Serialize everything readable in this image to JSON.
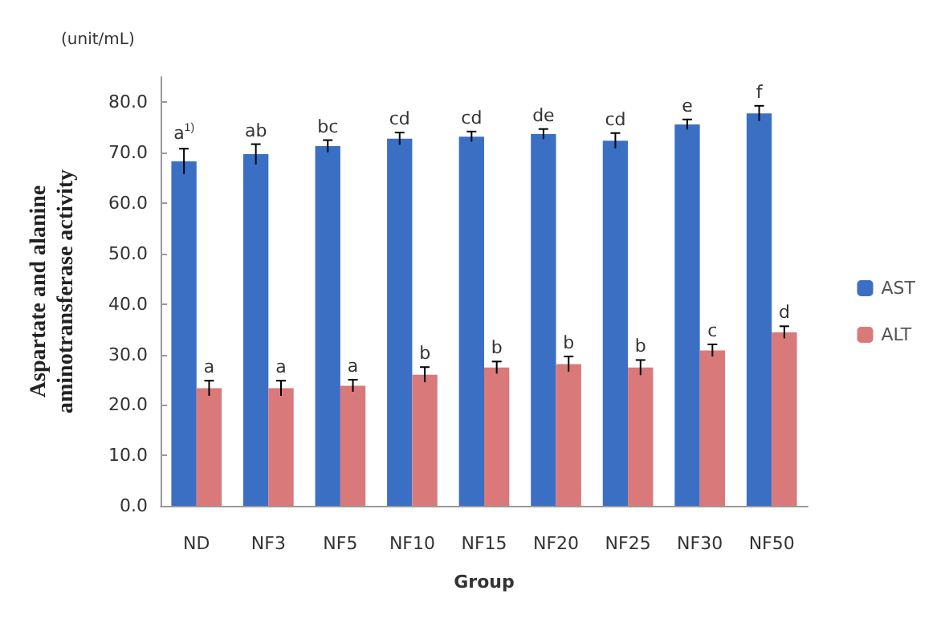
{
  "chart_data": {
    "type": "bar",
    "xlabel": "Group",
    "ylabel": "Aspartate and alanine\naminotransferase activity",
    "annotations": [
      "(unit/mL)",
      {
        "text": "a$^{1)}$",
        "x": "ND",
        "y": 70.8
      },
      {
        "text": "ab",
        "x": "NF3",
        "y": 71.7
      },
      {
        "text": "bc",
        "x": "NF5",
        "y": 72.5
      },
      {
        "text": "cd",
        "x": "NF10",
        "y": 74.0
      },
      {
        "text": "cd",
        "x": "NF15",
        "y": 74.2
      },
      {
        "text": "de",
        "x": "NF20",
        "y": 74.7
      },
      {
        "text": "cd",
        "x": "NF25",
        "y": 73.9
      },
      {
        "text": "e",
        "x": "NF30",
        "y": 76.6
      },
      {
        "text": "f",
        "x": "NF50",
        "y": 79.3
      },
      {
        "text": "a",
        "x": "ND",
        "y": 24.8
      },
      {
        "text": "a",
        "x": "NF3",
        "y": 24.8
      },
      {
        "text": "a",
        "x": "NF5",
        "y": 25.0
      },
      {
        "text": "b",
        "x": "NF10",
        "y": 27.5
      },
      {
        "text": "b",
        "x": "NF15",
        "y": 28.6
      },
      {
        "text": "b",
        "x": "NF20",
        "y": 29.6
      },
      {
        "text": "b",
        "x": "NF25",
        "y": 28.9
      },
      {
        "text": "c",
        "x": "NF30",
        "y": 32.0
      },
      {
        "text": "d",
        "x": "NF50",
        "y": 35.6
      }
    ],
    "categories": [
      "ND",
      "NF3",
      "NF5",
      "NF10",
      "NF15",
      "NF20",
      "NF25",
      "NF30",
      "NF50"
    ],
    "series": [
      {
        "name": "AST",
        "color": "#3a6fc4",
        "values": [
          68.3,
          69.7,
          71.3,
          72.8,
          73.2,
          73.7,
          72.4,
          75.6,
          77.8
        ],
        "errors": [
          2.5,
          2,
          1.2,
          1.2,
          1,
          1,
          1.5,
          1,
          1.5
        ]
      },
      {
        "name": "ALT",
        "color": "#d9797a",
        "values": [
          23.3,
          23.3,
          23.8,
          26.0,
          27.4,
          28.1,
          27.4,
          30.8,
          34.4
        ],
        "errors": [
          1.5,
          1.5,
          1.2,
          1.5,
          1.2,
          1.5,
          1.5,
          1.2,
          1.2
        ]
      }
    ],
    "ylim": [
      0,
      85
    ],
    "yticks": [
      {
        "value": 0,
        "label": "0.0"
      },
      {
        "value": 10,
        "label": "10.0"
      },
      {
        "value": 20,
        "label": "20.0"
      },
      {
        "value": 30,
        "label": "30.0"
      },
      {
        "value": 40,
        "label": "40.0"
      },
      {
        "value": 50,
        "label": "50.0"
      },
      {
        "value": 60,
        "label": "60.0"
      },
      {
        "value": 70,
        "label": "70.0"
      },
      {
        "value": 80,
        "label": "80.0"
      }
    ],
    "grid": false,
    "legend": "right"
  }
}
